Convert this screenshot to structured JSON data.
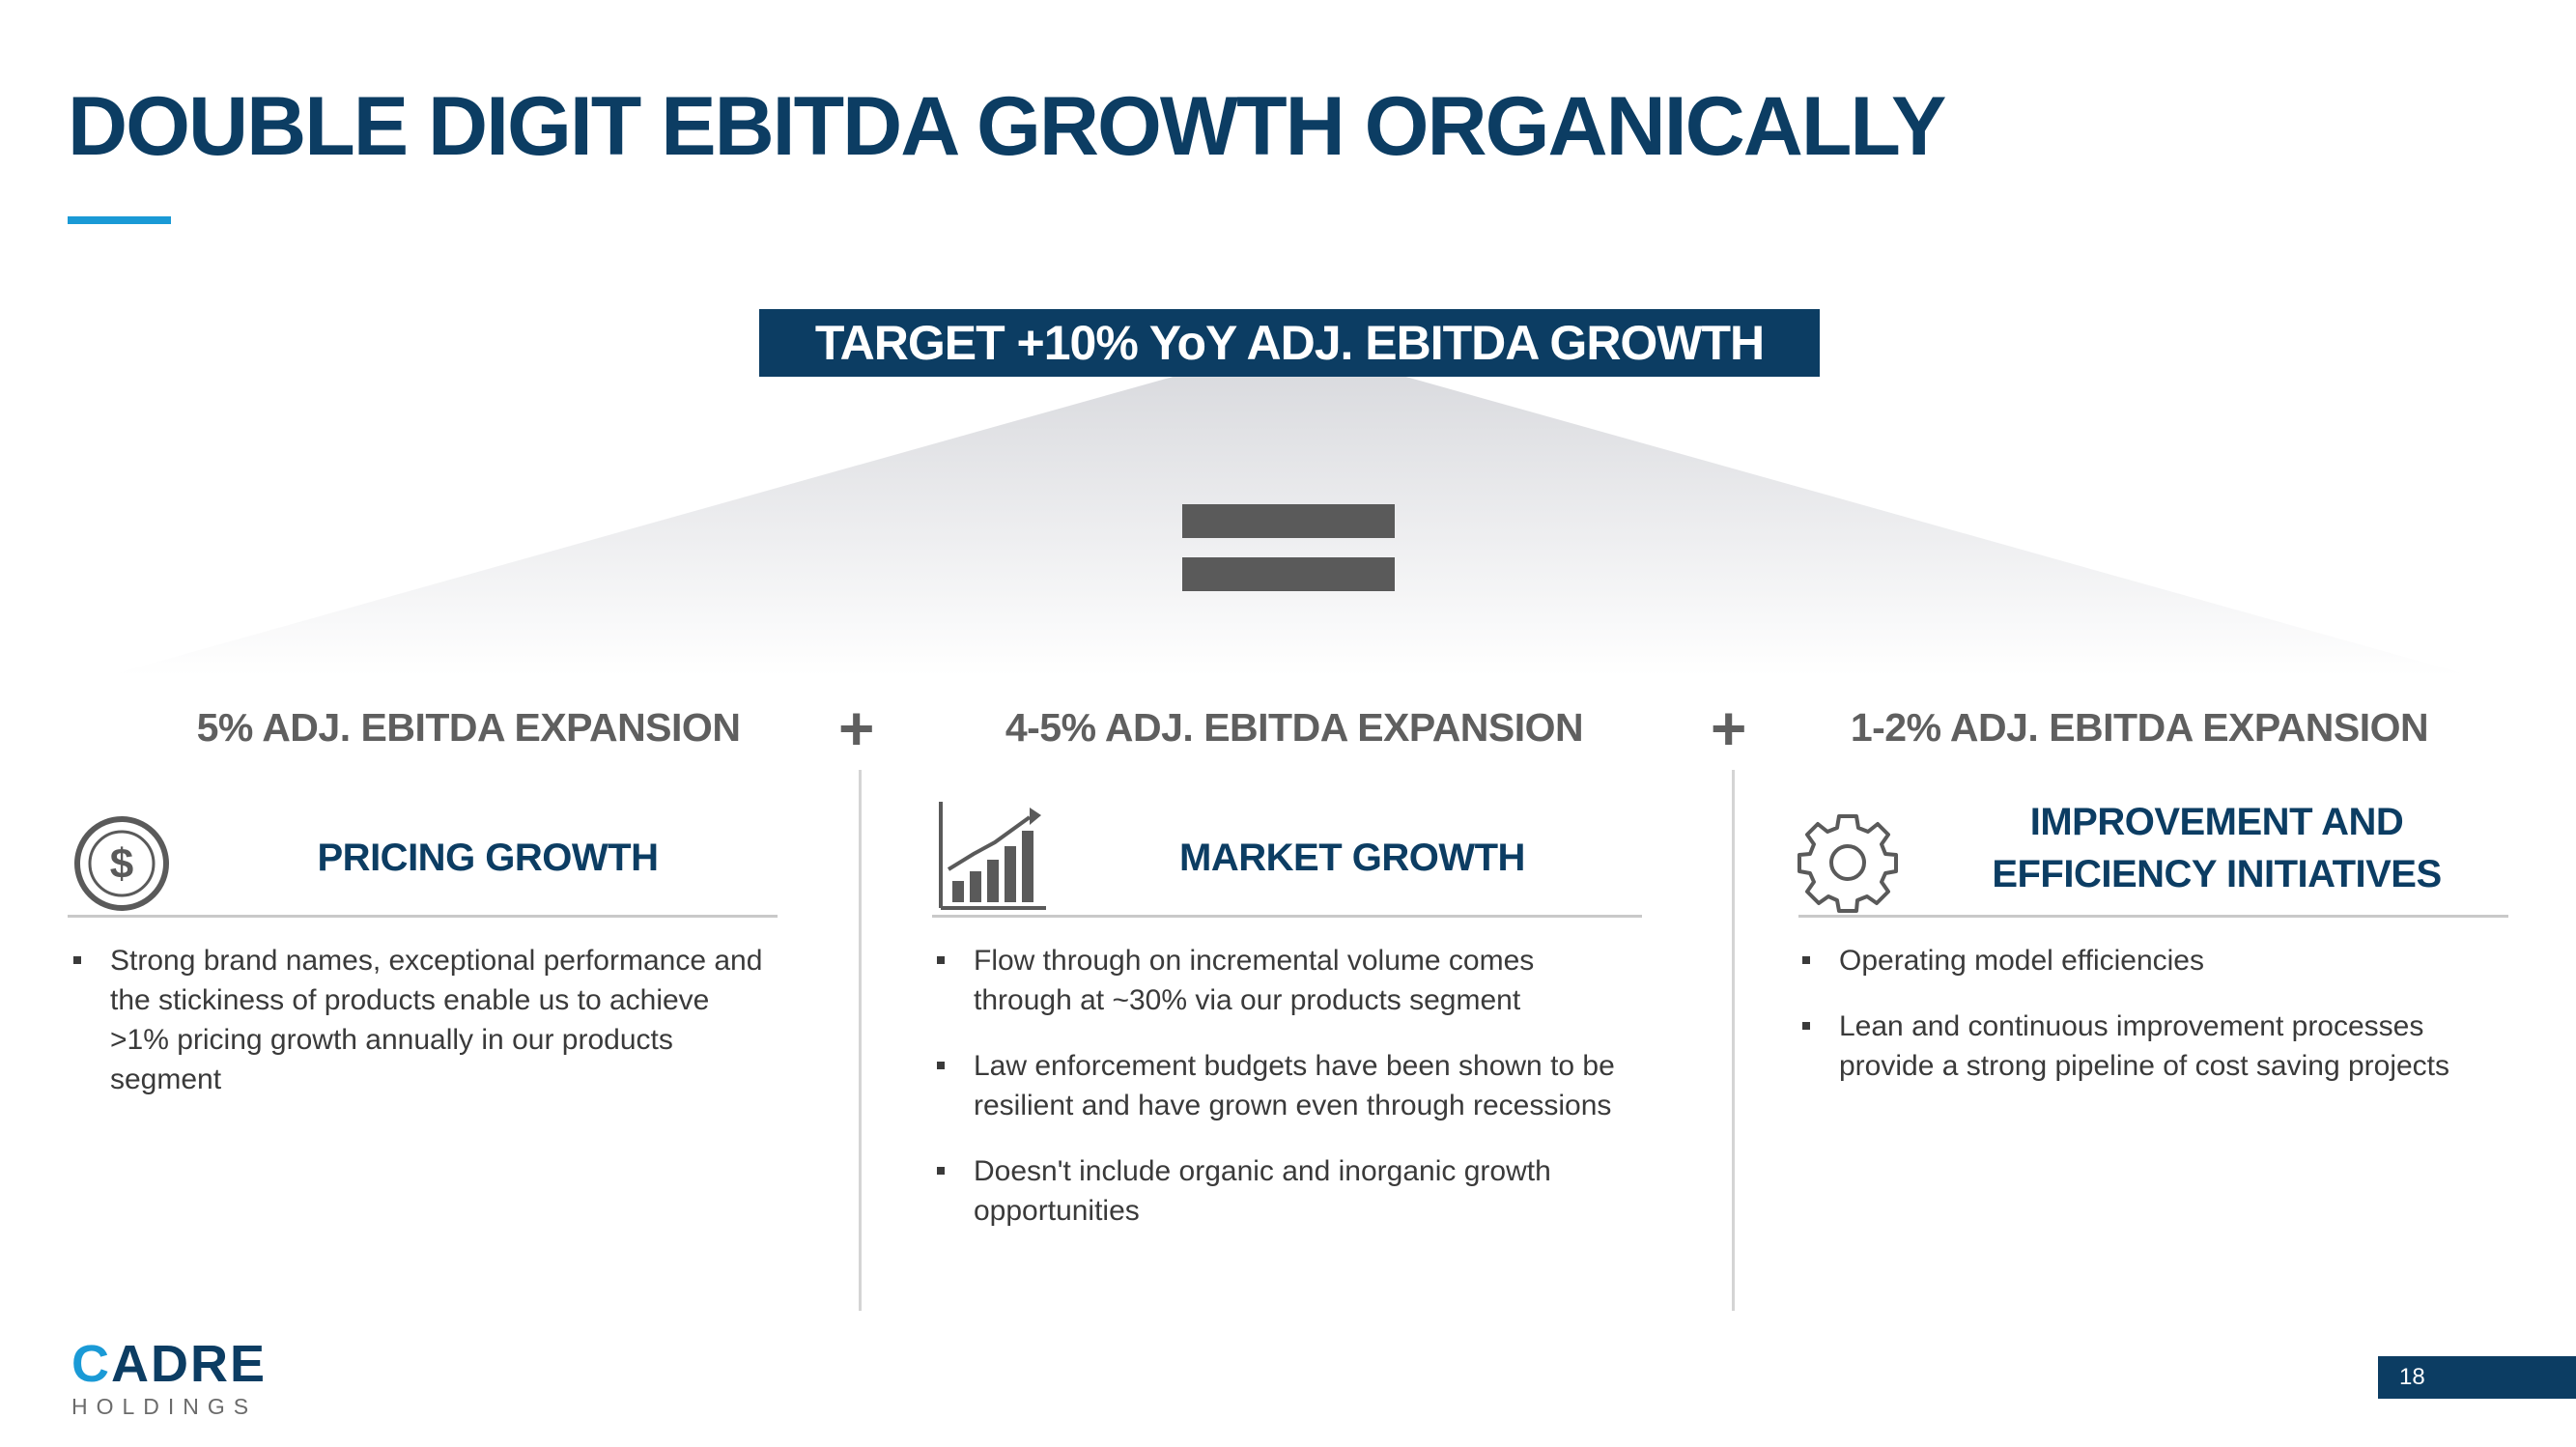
{
  "title": "DOUBLE DIGIT EBITDA GROWTH ORGANICALLY",
  "target": "TARGET +10% YoY ADJ. EBITDA GROWTH",
  "plus_sign": "+",
  "columns": [
    {
      "header": "5% ADJ. EBITDA EXPANSION",
      "icon": "dollar-circle-icon",
      "subtitle_lines": [
        "PRICING GROWTH"
      ],
      "bullets": [
        "Strong brand names, exceptional performance and the stickiness of products enable us to achieve >1% pricing growth annually in our products segment"
      ]
    },
    {
      "header": "4-5% ADJ. EBITDA EXPANSION",
      "icon": "bar-chart-growth-icon",
      "subtitle_lines": [
        "MARKET GROWTH"
      ],
      "bullets": [
        "Flow through on incremental volume comes through at ~30% via our products segment",
        "Law enforcement budgets have been shown to be resilient and have grown even through recessions",
        "Doesn't include organic and inorganic growth opportunities"
      ]
    },
    {
      "header": "1-2% ADJ. EBITDA EXPANSION",
      "icon": "gear-icon",
      "subtitle_lines": [
        "IMPROVEMENT AND",
        "EFFICIENCY INITIATIVES"
      ],
      "bullets": [
        "Operating model efficiencies",
        "Lean and continuous improvement processes provide a strong pipeline of cost saving projects"
      ]
    }
  ],
  "logo": {
    "mark": "C",
    "name": "ADRE",
    "sub": "HOLDINGS"
  },
  "page_number": "18",
  "colors": {
    "navy": "#0c3d63",
    "accent_blue": "#1a9ad6",
    "gray_text": "#5f5f5f"
  }
}
